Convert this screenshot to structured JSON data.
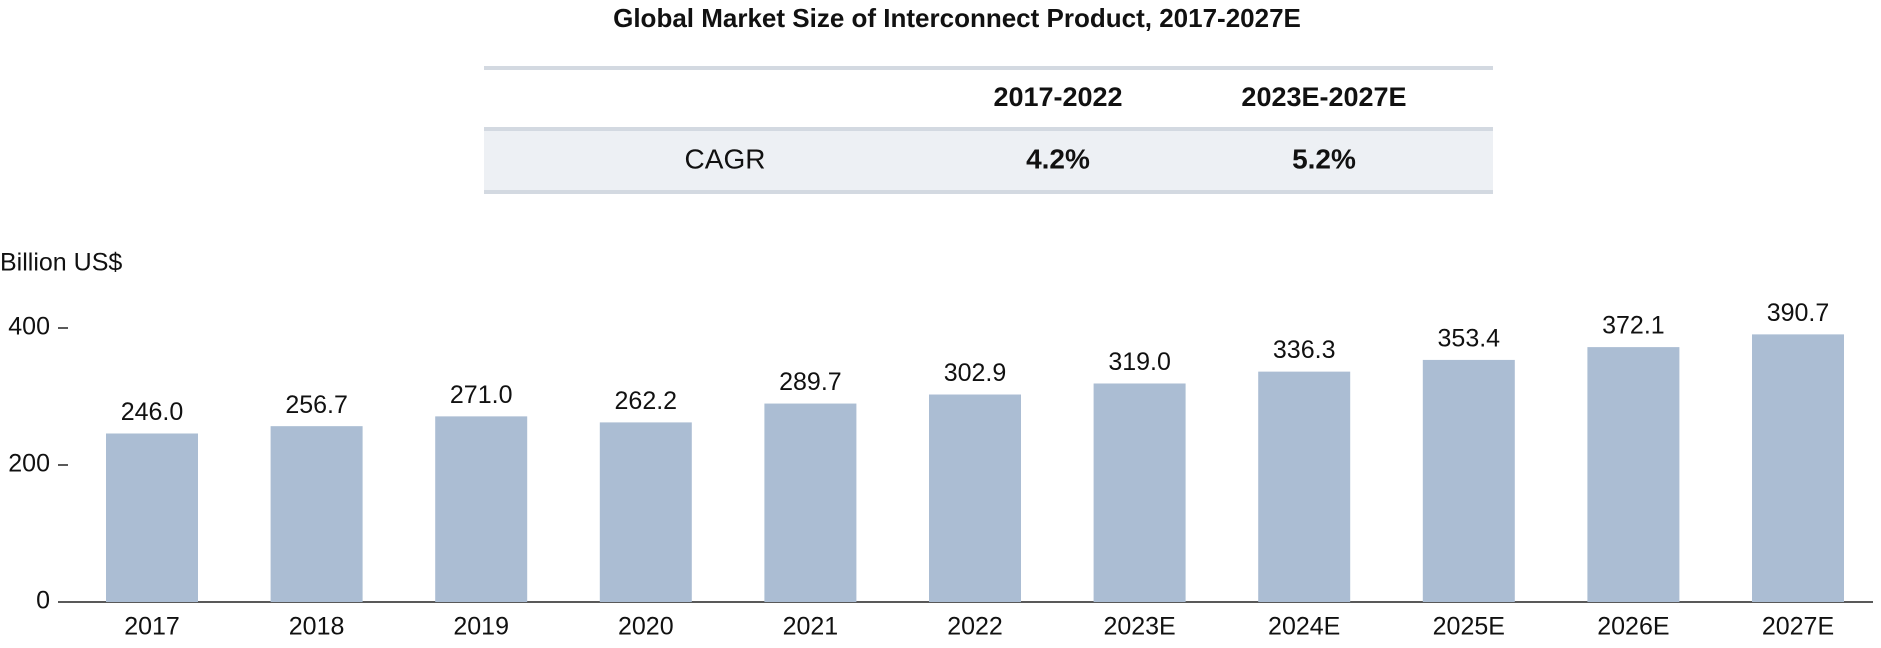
{
  "chart_data": {
    "type": "bar",
    "title": "Global Market Size of Interconnect Product, 2017-2027E",
    "y_label": "Billion US$",
    "categories": [
      "2017",
      "2018",
      "2019",
      "2020",
      "2021",
      "2022",
      "2023E",
      "2024E",
      "2025E",
      "2026E",
      "2027E"
    ],
    "values": [
      246.0,
      256.7,
      271.0,
      262.2,
      289.7,
      302.9,
      319.0,
      336.3,
      353.4,
      372.1,
      390.7
    ],
    "value_labels": [
      "246.0",
      "256.7",
      "271.0",
      "262.2",
      "289.7",
      "302.9",
      "319.0",
      "336.3",
      "353.4",
      "372.1",
      "390.7"
    ],
    "color": "#abbdd3",
    "ylim": [
      0,
      400
    ],
    "yticks": [
      0,
      200,
      400
    ],
    "grid": false
  },
  "table": {
    "header": [
      "2017-2022",
      "2023E-2027E"
    ],
    "rows": [
      [
        "CAGR",
        "4.2%",
        "5.2%"
      ]
    ]
  }
}
